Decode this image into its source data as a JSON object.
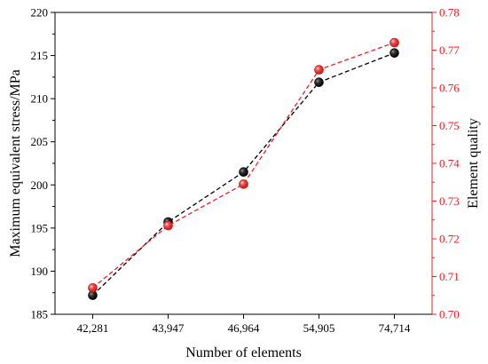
{
  "chart_data": {
    "type": "line",
    "title": "",
    "xlabel": "Number of elements",
    "categories": [
      "42,281",
      "43,947",
      "46,964",
      "54,905",
      "74,714"
    ],
    "left_axis": {
      "label": "Maximum equivalent stress/MPa",
      "ylim": [
        185,
        220
      ],
      "ticks": [
        "185",
        "190",
        "195",
        "200",
        "205",
        "210",
        "215",
        "220"
      ],
      "color": "#000000"
    },
    "right_axis": {
      "label": "Element quality",
      "ylim": [
        0.7,
        0.78
      ],
      "ticks": [
        "0.70",
        "0.71",
        "0.72",
        "0.73",
        "0.74",
        "0.75",
        "0.76",
        "0.77",
        "0.78"
      ],
      "color": "#e8202a"
    },
    "series": [
      {
        "axis": "left",
        "color": "#000000",
        "values": [
          187.2,
          195.7,
          201.5,
          211.9,
          215.3
        ]
      },
      {
        "axis": "right",
        "color": "#e8202a",
        "values": [
          0.707,
          0.7235,
          0.7345,
          0.7648,
          0.772
        ]
      }
    ],
    "grid": false,
    "legend": "none"
  }
}
